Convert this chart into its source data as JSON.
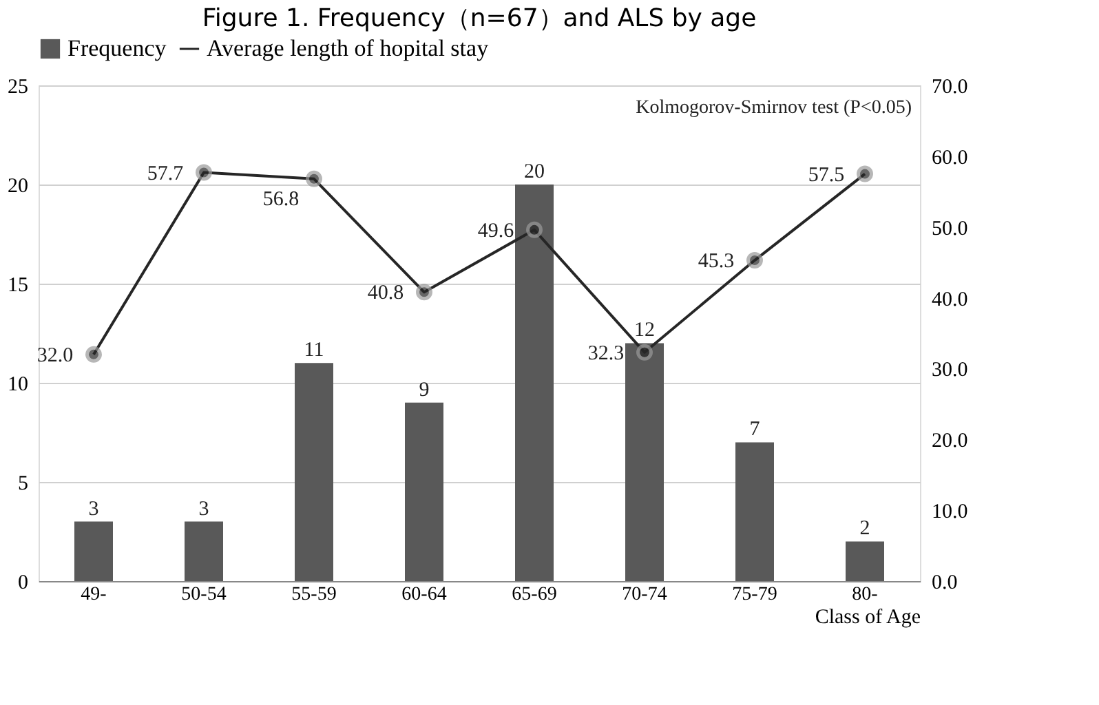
{
  "chart_data": {
    "type": "bar",
    "title": "Figure 1. Frequency（n=67）and ALS by age",
    "xlabel": "Class of Age",
    "categories": [
      "49-",
      "50-54",
      "55-59",
      "60-64",
      "65-69",
      "70-74",
      "75-79",
      "80-"
    ],
    "series": [
      {
        "name": "Frequency",
        "color": "#595959",
        "values": [
          3,
          3,
          11,
          9,
          20,
          12,
          7,
          2
        ]
      },
      {
        "name": "Average length of hopital stay",
        "type": "line",
        "axis": "y2",
        "color": "#262626",
        "values": [
          32.0,
          57.7,
          56.8,
          40.8,
          49.6,
          32.3,
          45.3,
          57.5
        ],
        "value_labels": [
          "32.0",
          "57.7",
          "56.8",
          "40.8",
          "49.6",
          "32.3",
          "45.3",
          "57.5"
        ]
      }
    ],
    "ylim": [
      0,
      25
    ],
    "yticks": [
      0,
      5,
      10,
      15,
      20,
      25
    ],
    "y2lim": [
      0,
      70
    ],
    "y2ticks": [
      {
        "value": 0,
        "label": "0.0"
      },
      {
        "value": 10,
        "label": "10.0"
      },
      {
        "value": 20,
        "label": "20.0"
      },
      {
        "value": 30,
        "label": "30.0"
      },
      {
        "value": 40,
        "label": "40.0"
      },
      {
        "value": 50,
        "label": "50.0"
      },
      {
        "value": 60,
        "label": "60.0"
      },
      {
        "value": 70,
        "label": "70.0"
      }
    ],
    "annotations": [
      "Kolmogorov-Smirnov test (P<0.05)"
    ],
    "data_labels": true,
    "grid": "y",
    "legend": "top",
    "marker": "circle",
    "line_style": "solid"
  }
}
